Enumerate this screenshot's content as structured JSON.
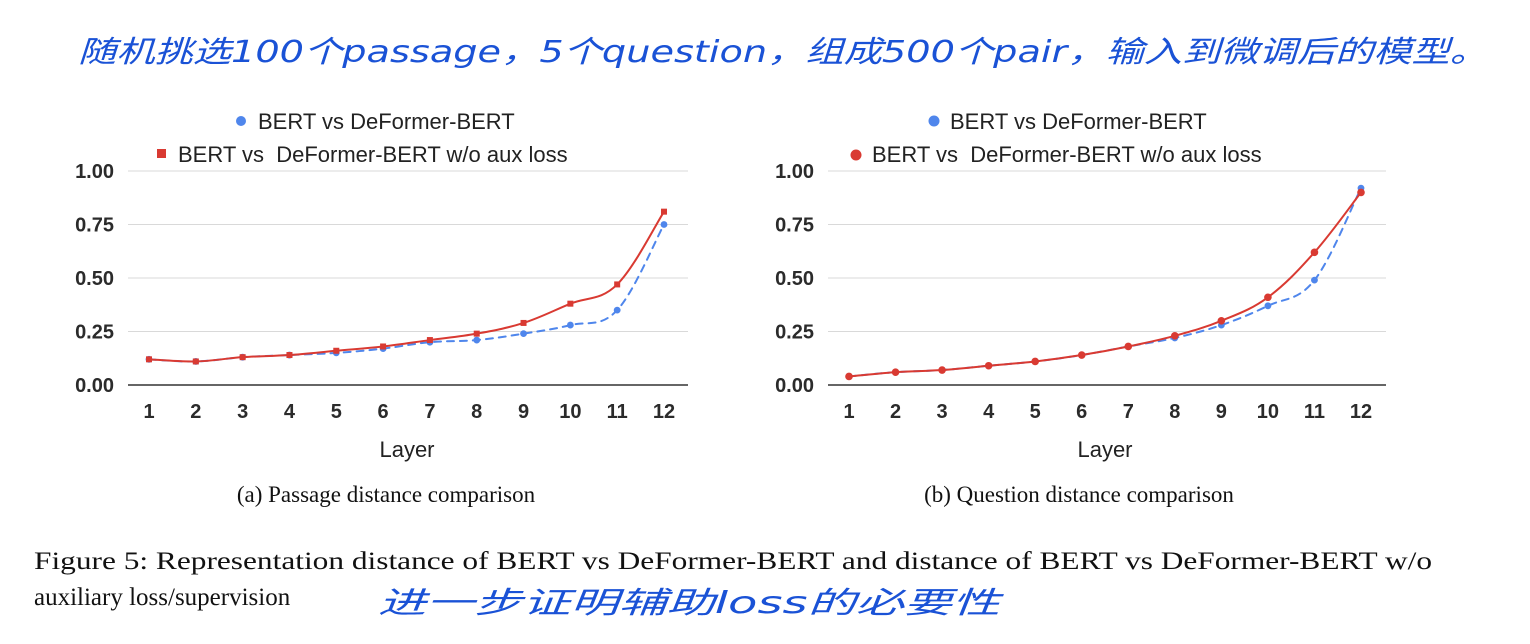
{
  "annotations": {
    "top_note": "随机挑选100个passage，5个question，组成500个pair，输入到微调后的模型。",
    "bottom_note": "进一步证明辅助loss的必要性"
  },
  "figure_caption": {
    "line1": "Figure 5: Representation distance of BERT vs DeFormer-BERT and distance of BERT vs DeFormer-BERT w/o",
    "line2": "auxiliary loss/supervision"
  },
  "colors": {
    "blue": "#4f86ec",
    "red": "#d93a32"
  },
  "chart_data": [
    {
      "type": "line",
      "caption": "(a) Passage distance comparison",
      "xlabel": "Layer",
      "ylabel": "",
      "x": [
        1,
        2,
        3,
        4,
        5,
        6,
        7,
        8,
        9,
        10,
        11,
        12
      ],
      "ylim": [
        0,
        1
      ],
      "yticks": [
        "0.00",
        "0.25",
        "0.50",
        "0.75",
        "1.00"
      ],
      "grid": true,
      "legend_position": "top",
      "series": [
        {
          "name": "BERT vs DeFormer-BERT",
          "style": "dashed",
          "marker": "circle",
          "color": "#4f86ec",
          "values": [
            0.12,
            0.11,
            0.13,
            0.14,
            0.15,
            0.17,
            0.2,
            0.21,
            0.24,
            0.28,
            0.35,
            0.75
          ]
        },
        {
          "name": "BERT vs  DeFormer-BERT w/o aux loss",
          "style": "solid",
          "marker": "square",
          "color": "#d93a32",
          "values": [
            0.12,
            0.11,
            0.13,
            0.14,
            0.16,
            0.18,
            0.21,
            0.24,
            0.29,
            0.38,
            0.47,
            0.81
          ]
        }
      ]
    },
    {
      "type": "line",
      "caption": "(b) Question distance comparison",
      "xlabel": "Layer",
      "ylabel": "",
      "x": [
        1,
        2,
        3,
        4,
        5,
        6,
        7,
        8,
        9,
        10,
        11,
        12
      ],
      "ylim": [
        0,
        1
      ],
      "yticks": [
        "0.00",
        "0.25",
        "0.50",
        "0.75",
        "1.00"
      ],
      "grid": true,
      "legend_position": "top",
      "series": [
        {
          "name": "BERT vs DeFormer-BERT",
          "style": "dashed",
          "marker": "circle",
          "color": "#4f86ec",
          "values": [
            0.04,
            0.06,
            0.07,
            0.09,
            0.11,
            0.14,
            0.18,
            0.22,
            0.28,
            0.37,
            0.49,
            0.92
          ]
        },
        {
          "name": "BERT vs  DeFormer-BERT w/o aux loss",
          "style": "solid",
          "marker": "circle",
          "color": "#d93a32",
          "values": [
            0.04,
            0.06,
            0.07,
            0.09,
            0.11,
            0.14,
            0.18,
            0.23,
            0.3,
            0.41,
            0.62,
            0.9
          ]
        }
      ]
    }
  ]
}
